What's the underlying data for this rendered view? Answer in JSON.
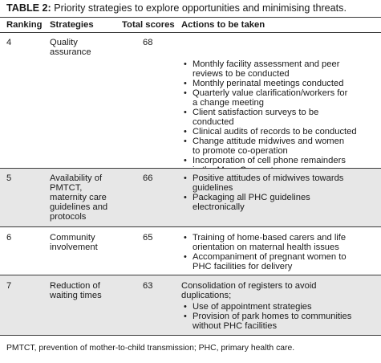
{
  "caption": {
    "label": "TABLE 2:",
    "text": " Priority strategies to explore opportunities and minimising threats."
  },
  "headers": {
    "ranking": "Ranking",
    "strategies": "Strategies",
    "total_scores": "Total scores",
    "actions": "Actions to be taken"
  },
  "rows": [
    {
      "ranking": "4",
      "strategy": "Quality\nassurance",
      "score": "68",
      "intro": "",
      "actions": [
        "Monthly facility assessment and peer\nreviews to be conducted",
        "Monthly perinatal meetings conducted",
        "Quarterly value clarification/workers for\na change meeting",
        "Client satisfaction surveys to be\nconducted",
        "Clinical audits of records to be conducted",
        "Change attitude midwives and women\nto promote co-operation",
        "Incorporation of cell phone remainders\nin the Mom-Connect programme"
      ]
    },
    {
      "ranking": "5",
      "strategy": "Availability of\nPMTCT,\nmaternity care\nguidelines and\nprotocols",
      "score": "66",
      "intro": "",
      "actions": [
        "Positive attitudes of midwives towards\nguidelines",
        "Packaging all PHC guidelines\nelectronically"
      ]
    },
    {
      "ranking": "6",
      "strategy": "Community\ninvolvement",
      "score": "65",
      "intro": "",
      "actions": [
        "Training of home-based carers and life\norientation on maternal health issues",
        "Accompaniment of pregnant women to\nPHC facilities for delivery"
      ]
    },
    {
      "ranking": "7",
      "strategy": "Reduction of\nwaiting times",
      "score": "63",
      "intro": "Consolidation of registers to avoid\nduplications;",
      "actions": [
        "Use of appointment strategies",
        "Provision of park homes to communities\nwithout PHC facilities"
      ]
    }
  ],
  "footnote": "PMTCT, prevention of mother-to-child transmission; PHC, primary health care."
}
